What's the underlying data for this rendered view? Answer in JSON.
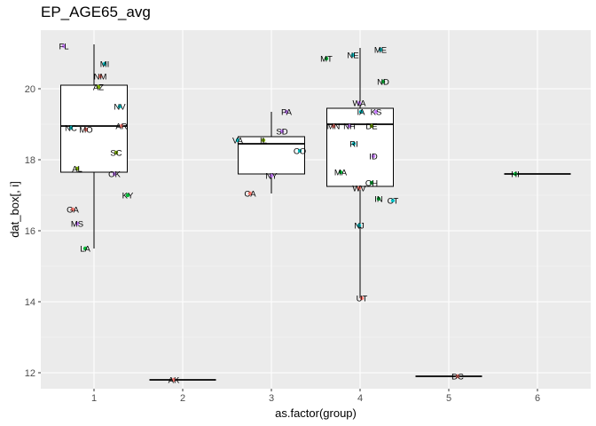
{
  "chart_data": {
    "type": "boxplot",
    "title": "EP_AGE65_avg",
    "xlabel": "as.factor(group)",
    "ylabel": "dat_box[, i]",
    "categories": [
      "1",
      "2",
      "3",
      "4",
      "5",
      "6"
    ],
    "ylim": [
      11.55,
      21.65
    ],
    "yticks": [
      12,
      14,
      16,
      18,
      20
    ],
    "grid": true,
    "boxes": [
      {
        "group": "1",
        "min": 15.5,
        "q1": 17.65,
        "median": 18.95,
        "q3": 20.1,
        "max": 21.25
      },
      {
        "group": "2",
        "min": 11.8,
        "q1": 11.8,
        "median": 11.8,
        "q3": 11.8,
        "max": 11.8
      },
      {
        "group": "3",
        "min": 17.05,
        "q1": 17.6,
        "median": 18.45,
        "q3": 18.65,
        "max": 19.35
      },
      {
        "group": "4",
        "min": 14.1,
        "q1": 17.25,
        "median": 19.0,
        "q3": 19.45,
        "max": 21.15
      },
      {
        "group": "5",
        "min": 11.9,
        "q1": 11.9,
        "median": 11.9,
        "q3": 11.9,
        "max": 11.9
      },
      {
        "group": "6",
        "min": 17.6,
        "q1": 17.6,
        "median": 17.6,
        "q3": 17.6,
        "max": 17.6
      }
    ],
    "points": [
      {
        "label": "FL",
        "x": 0.66,
        "y": 21.2,
        "color": "#C77CFF"
      },
      {
        "label": "MI",
        "x": 1.12,
        "y": 20.7,
        "color": "#00BFC4"
      },
      {
        "label": "NM",
        "x": 1.07,
        "y": 20.35,
        "color": "#F8766D"
      },
      {
        "label": "AZ",
        "x": 1.05,
        "y": 20.05,
        "color": "#7CAE00"
      },
      {
        "label": "NV",
        "x": 1.29,
        "y": 19.5,
        "color": "#00BFC4"
      },
      {
        "label": "AR",
        "x": 1.31,
        "y": 18.95,
        "color": "#F8766D"
      },
      {
        "label": "NC",
        "x": 0.74,
        "y": 18.9,
        "color": "#00BFC4"
      },
      {
        "label": "MO",
        "x": 0.91,
        "y": 18.85,
        "color": "#F8766D"
      },
      {
        "label": "SC",
        "x": 1.25,
        "y": 18.2,
        "color": "#7CAE00"
      },
      {
        "label": "AL",
        "x": 0.81,
        "y": 17.75,
        "color": "#7CAE00"
      },
      {
        "label": "OK",
        "x": 1.23,
        "y": 17.6,
        "color": "#C77CFF"
      },
      {
        "label": "KY",
        "x": 1.38,
        "y": 17.0,
        "color": "#00BA38"
      },
      {
        "label": "GA",
        "x": 0.76,
        "y": 16.6,
        "color": "#F8766D"
      },
      {
        "label": "MS",
        "x": 0.81,
        "y": 16.2,
        "color": "#C77CFF"
      },
      {
        "label": "LA",
        "x": 0.9,
        "y": 15.5,
        "color": "#00BA38"
      },
      {
        "label": "AK",
        "x": 1.9,
        "y": 11.8,
        "color": "#F8766D"
      },
      {
        "label": "PA",
        "x": 3.17,
        "y": 19.35,
        "color": "#C77CFF"
      },
      {
        "label": "SD",
        "x": 3.12,
        "y": 18.8,
        "color": "#C77CFF"
      },
      {
        "label": "VA",
        "x": 2.62,
        "y": 18.55,
        "color": "#00BFC4"
      },
      {
        "label": "IL",
        "x": 2.91,
        "y": 18.55,
        "color": "#7CAE00"
      },
      {
        "label": "CO",
        "x": 3.32,
        "y": 18.25,
        "color": "#00BFC4"
      },
      {
        "label": "NY",
        "x": 3.0,
        "y": 17.55,
        "color": "#C77CFF"
      },
      {
        "label": "CA",
        "x": 2.76,
        "y": 17.05,
        "color": "#F8766D"
      },
      {
        "label": "ME",
        "x": 4.23,
        "y": 21.1,
        "color": "#00BFC4"
      },
      {
        "label": "NE",
        "x": 3.92,
        "y": 20.95,
        "color": "#00BFC4"
      },
      {
        "label": "MT",
        "x": 3.62,
        "y": 20.85,
        "color": "#00BA38"
      },
      {
        "label": "ND",
        "x": 4.26,
        "y": 20.2,
        "color": "#00BA38"
      },
      {
        "label": "WA",
        "x": 3.99,
        "y": 19.6,
        "color": "#C77CFF"
      },
      {
        "label": "IA",
        "x": 4.01,
        "y": 19.35,
        "color": "#00BFC4"
      },
      {
        "label": "KS",
        "x": 4.18,
        "y": 19.35,
        "color": "#C77CFF"
      },
      {
        "label": "MN",
        "x": 3.7,
        "y": 18.95,
        "color": "#F8766D"
      },
      {
        "label": "NH",
        "x": 3.88,
        "y": 18.95,
        "color": "#C77CFF"
      },
      {
        "label": "DE",
        "x": 4.13,
        "y": 18.95,
        "color": "#7CAE00"
      },
      {
        "label": "RI",
        "x": 3.93,
        "y": 18.45,
        "color": "#00BFC4"
      },
      {
        "label": "ID",
        "x": 4.15,
        "y": 18.1,
        "color": "#C77CFF"
      },
      {
        "label": "MA",
        "x": 3.78,
        "y": 17.65,
        "color": "#00BA38"
      },
      {
        "label": "OH",
        "x": 4.13,
        "y": 17.35,
        "color": "#00BA38"
      },
      {
        "label": "WV",
        "x": 3.99,
        "y": 17.2,
        "color": "#F8766D"
      },
      {
        "label": "IN",
        "x": 4.21,
        "y": 16.9,
        "color": "#00BA38"
      },
      {
        "label": "CT",
        "x": 4.37,
        "y": 16.85,
        "color": "#00BFC4"
      },
      {
        "label": "NJ",
        "x": 3.99,
        "y": 16.15,
        "color": "#00BFC4"
      },
      {
        "label": "UT",
        "x": 4.02,
        "y": 14.1,
        "color": "#F8766D"
      },
      {
        "label": "DC",
        "x": 5.1,
        "y": 11.9,
        "color": "#F8766D"
      },
      {
        "label": "HI",
        "x": 5.75,
        "y": 17.6,
        "color": "#00BA38"
      }
    ]
  }
}
